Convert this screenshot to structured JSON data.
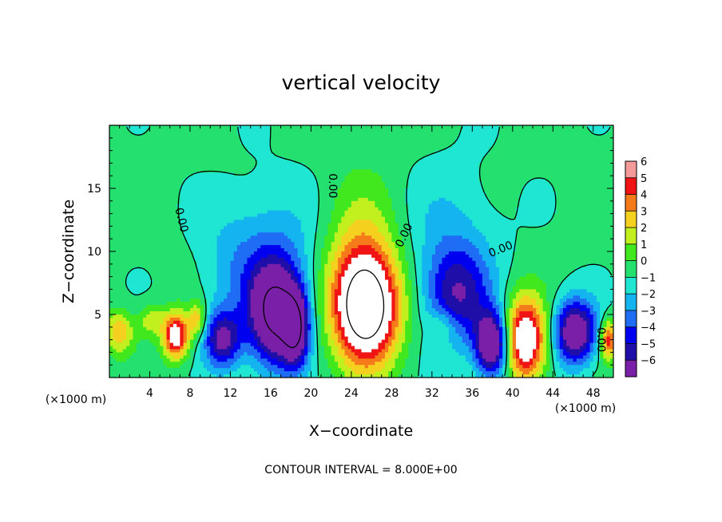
{
  "chart_data": {
    "type": "heatmap",
    "title": "vertical velocity",
    "xlabel": "X−coordinate",
    "ylabel": "Z−coordinate",
    "x_unit": "(×1000 m)",
    "y_unit": "(×1000 m)",
    "xlim": [
      0,
      50
    ],
    "ylim": [
      0,
      20
    ],
    "x_ticks": [
      {
        "value": 4,
        "label": "4"
      },
      {
        "value": 8,
        "label": "8"
      },
      {
        "value": 12,
        "label": "12"
      },
      {
        "value": 16,
        "label": "16"
      },
      {
        "value": 20,
        "label": "20"
      },
      {
        "value": 24,
        "label": "24"
      },
      {
        "value": 28,
        "label": "28"
      },
      {
        "value": 32,
        "label": "32"
      },
      {
        "value": 36,
        "label": "36"
      },
      {
        "value": 40,
        "label": "40"
      },
      {
        "value": 44,
        "label": "44"
      },
      {
        "value": 48,
        "label": "48"
      }
    ],
    "y_ticks": [
      {
        "value": 5,
        "label": "5"
      },
      {
        "value": 10,
        "label": "10"
      },
      {
        "value": 15,
        "label": "15"
      }
    ],
    "colorbar": {
      "min": -6,
      "max": 6,
      "levels": [
        {
          "value": -6,
          "label": "−6",
          "color": "#7a1fa8"
        },
        {
          "value": -5,
          "label": "−5",
          "color": "#1f0fa8"
        },
        {
          "value": -4,
          "label": "−4",
          "color": "#0000f0"
        },
        {
          "value": -3,
          "label": "−3",
          "color": "#1f6cf5"
        },
        {
          "value": -2,
          "label": "−2",
          "color": "#14b4f0"
        },
        {
          "value": -1,
          "label": "−1",
          "color": "#1ee6d2"
        },
        {
          "value": 0,
          "label": "0",
          "color": "#24e06e"
        },
        {
          "value": 1,
          "label": "1",
          "color": "#42e81e"
        },
        {
          "value": 2,
          "label": "2",
          "color": "#c2f01e"
        },
        {
          "value": 3,
          "label": "3",
          "color": "#f5d01e"
        },
        {
          "value": 4,
          "label": "4",
          "color": "#f57a1a"
        },
        {
          "value": 5,
          "label": "5",
          "color": "#f01414"
        },
        {
          "value": 6,
          "label": "6",
          "color": "#f59a9a"
        }
      ],
      "above_max_color": "#ffffff"
    },
    "contour_labels": [
      {
        "x": 7.2,
        "z": 12.5,
        "text": "0.00",
        "angle": 76
      },
      {
        "x": 22.2,
        "z": 15.2,
        "text": "0.00",
        "angle": 90
      },
      {
        "x": 29.2,
        "z": 11.3,
        "text": "0.00",
        "angle": -64
      },
      {
        "x": 38.8,
        "z": 10.2,
        "text": "0.00",
        "angle": -22
      },
      {
        "x": 48.8,
        "z": 3.0,
        "text": "0.00",
        "angle": 90
      }
    ],
    "blobs": [
      {
        "x": 25.5,
        "z": 5.5,
        "sx": 2.3,
        "sz": 3.1,
        "amp": 9.0
      },
      {
        "x": 24.8,
        "z": 9.0,
        "sx": 2.6,
        "sz": 4.5,
        "amp": 2.6
      },
      {
        "x": 41.2,
        "z": 3.0,
        "sx": 1.5,
        "sz": 2.3,
        "amp": 8.0
      },
      {
        "x": 6.6,
        "z": 3.3,
        "sx": 0.9,
        "sz": 1.3,
        "amp": 7.0
      },
      {
        "x": 1.0,
        "z": 3.6,
        "sx": 1.0,
        "sz": 1.2,
        "amp": 3.6
      },
      {
        "x": 4.2,
        "z": 4.5,
        "sx": 0.9,
        "sz": 0.9,
        "amp": 2.5
      },
      {
        "x": 8.7,
        "z": 4.6,
        "sx": 0.6,
        "sz": 1.0,
        "amp": 3.5
      },
      {
        "x": 49.5,
        "z": 3.0,
        "sx": 0.6,
        "sz": 1.1,
        "amp": 5.5
      },
      {
        "x": 33.0,
        "z": 4.0,
        "sx": 1.0,
        "sz": 1.0,
        "amp": 2.0
      },
      {
        "x": 16.5,
        "z": 5.0,
        "sx": 1.8,
        "sz": 2.8,
        "amp": -8.0
      },
      {
        "x": 18.5,
        "z": 3.8,
        "sx": 0.9,
        "sz": 2.0,
        "amp": -6.0
      },
      {
        "x": 11.2,
        "z": 3.0,
        "sx": 1.3,
        "sz": 1.6,
        "amp": -5.5
      },
      {
        "x": 38.0,
        "z": 2.6,
        "sx": 1.2,
        "sz": 1.8,
        "amp": -8.0
      },
      {
        "x": 34.5,
        "z": 6.5,
        "sx": 2.2,
        "sz": 2.6,
        "amp": -4.2
      },
      {
        "x": 46.2,
        "z": 3.6,
        "sx": 1.5,
        "sz": 1.8,
        "amp": -7.2
      },
      {
        "x": 16.0,
        "z": 8.8,
        "sx": 3.4,
        "sz": 4.2,
        "amp": -2.2
      },
      {
        "x": 34.0,
        "z": 10.0,
        "sx": 3.2,
        "sz": 4.5,
        "amp": -1.6
      },
      {
        "x": 12.0,
        "z": 9.0,
        "sx": 2.2,
        "sz": 3.2,
        "amp": -0.9
      }
    ]
  },
  "footer": "CONTOUR INTERVAL = 8.000E+00"
}
